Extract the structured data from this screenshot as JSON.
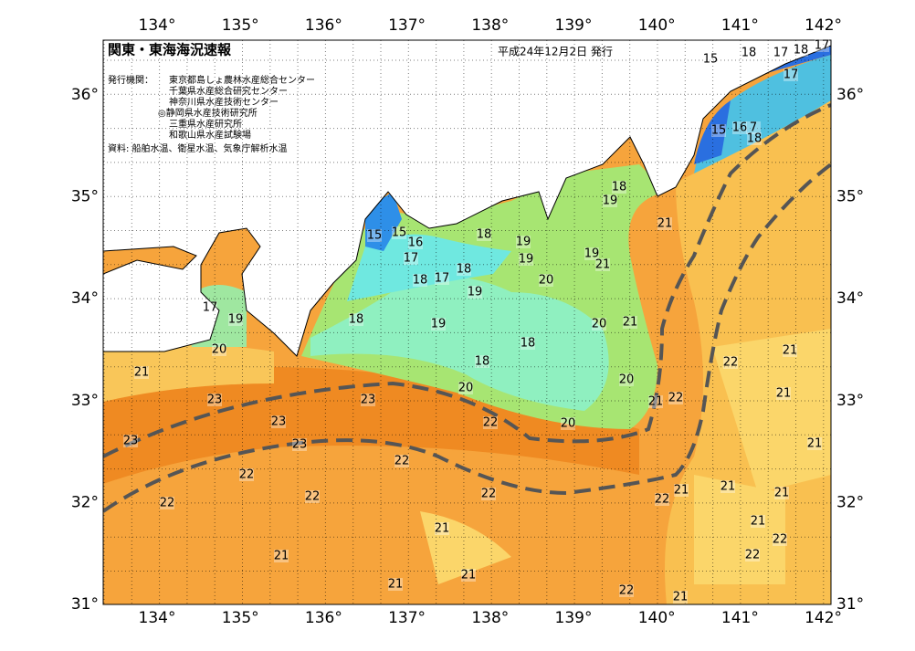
{
  "header": {
    "title": "関東・東海海況速報",
    "date": "平成24年12月2日 発行",
    "agency_heading": "発行機関：",
    "agencies": [
      "東京都島しょ農林水産総合センター",
      "千葉県水産総合研究センター",
      "神奈川県水産技術センター",
      "◎静岡県水産技術研究所",
      "三重県水産研究所",
      "和歌山県水産試験場"
    ],
    "source": "資料: 船舶水温、衛星水温、気象庁解析水温"
  },
  "map": {
    "longitudes": [
      "134°",
      "135°",
      "136°",
      "137°",
      "138°",
      "139°",
      "140°",
      "141°",
      "142°"
    ],
    "latitudes": [
      "36°",
      "35°",
      "34°",
      "33°",
      "32°",
      "31°"
    ],
    "contour_labels": [
      "18",
      "17",
      "18",
      "17",
      "15",
      "17",
      "15",
      "16",
      "7",
      "18",
      "18",
      "19",
      "21",
      "15",
      "15",
      "16",
      "17",
      "18",
      "19",
      "19",
      "19",
      "21",
      "18",
      "17",
      "18",
      "19",
      "20",
      "17",
      "19",
      "18",
      "19",
      "20",
      "21",
      "20",
      "18",
      "18",
      "21",
      "20",
      "20",
      "21",
      "22",
      "22",
      "21",
      "21",
      "23",
      "23",
      "23",
      "22",
      "20",
      "23",
      "23",
      "21",
      "22",
      "22",
      "22",
      "22",
      "22",
      "21",
      "21",
      "22",
      "21",
      "21",
      "21",
      "22",
      "22",
      "21",
      "21",
      "21",
      "22",
      "21"
    ]
  }
}
